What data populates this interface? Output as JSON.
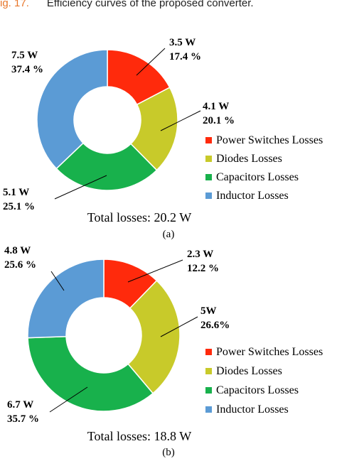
{
  "caption": {
    "fig_label": "ig. 17.",
    "text": "Efficiency curves of the proposed converter."
  },
  "chart_data": [
    {
      "type": "pie",
      "subtitle": "(a)",
      "footer": "Total losses: 20.2 W",
      "legend_position": "right",
      "slices": [
        {
          "name": "Power Switches Losses",
          "value": 3.5,
          "percent": 17.4,
          "color": "#ff2a0c",
          "label_w": "3.5 W",
          "label_p": "17.4 %"
        },
        {
          "name": "Diodes Losses",
          "value": 4.1,
          "percent": 20.1,
          "color": "#c8ca2a",
          "label_w": "4.1 W",
          "label_p": "20.1 %"
        },
        {
          "name": "Capacitors Losses",
          "value": 5.1,
          "percent": 25.1,
          "color": "#18b14c",
          "label_w": "5.1 W",
          "label_p": "25.1 %"
        },
        {
          "name": "Inductor Losses",
          "value": 7.5,
          "percent": 37.4,
          "color": "#5b9bd5",
          "label_w": "7.5 W",
          "label_p": "37.4 %"
        }
      ]
    },
    {
      "type": "pie",
      "subtitle": "(b)",
      "footer": "Total losses: 18.8 W",
      "legend_position": "right",
      "slices": [
        {
          "name": "Power Switches Losses",
          "value": 2.3,
          "percent": 12.2,
          "color": "#ff2a0c",
          "label_w": "2.3 W",
          "label_p": "12.2 %"
        },
        {
          "name": "Diodes Losses",
          "value": 5,
          "percent": 26.6,
          "color": "#c8ca2a",
          "label_w": "5W",
          "label_p": "26.6%"
        },
        {
          "name": "Capacitors Losses",
          "value": 6.7,
          "percent": 35.7,
          "color": "#18b14c",
          "label_w": "6.7 W",
          "label_p": "35.7 %"
        },
        {
          "name": "Inductor Losses",
          "value": 4.8,
          "percent": 25.6,
          "color": "#5b9bd5",
          "label_w": "4.8 W",
          "label_p": "25.6 %"
        }
      ]
    }
  ]
}
